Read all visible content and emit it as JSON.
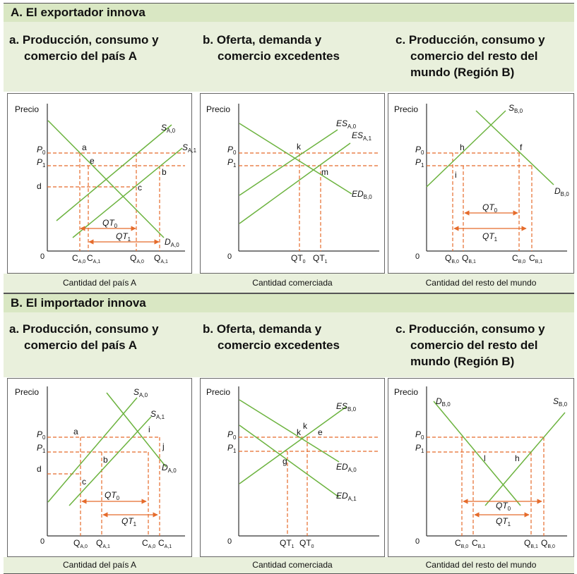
{
  "colors": {
    "curve": "#6cb33f",
    "dash": "#e56b2b",
    "axis": "#333333",
    "header_bg": "#d9e7c3",
    "row_bg": "#e9f0dc"
  },
  "sections": [
    {
      "title": "A. El exportador innova",
      "panels": [
        {
          "title_l1": "a. Producción, consumo y",
          "title_l2": "comercio del país A",
          "title_l3": "",
          "caption": "Cantidad del país A"
        },
        {
          "title_l1": "b. Oferta, demanda y",
          "title_l2": "comercio excedentes",
          "title_l3": "",
          "caption": "Cantidad comerciada"
        },
        {
          "title_l1": "c. Producción, consumo y",
          "title_l2": "comercio del resto del",
          "title_l3": "mundo (Región B)",
          "caption": "Cantidad del resto del mundo"
        }
      ]
    },
    {
      "title": "B. El importador innova",
      "panels": [
        {
          "title_l1": "a. Producción, consumo y",
          "title_l2": "comercio del país A",
          "title_l3": "",
          "caption": "Cantidad del país A"
        },
        {
          "title_l1": "b. Oferta, demanda y",
          "title_l2": "comercio excedentes",
          "title_l3": "",
          "caption": "Cantidad comerciada"
        },
        {
          "title_l1": "c. Producción, consumo y",
          "title_l2": "comercio del resto del",
          "title_l3": "mundo (Región B)",
          "caption": "Cantidad del resto del mundo"
        }
      ]
    }
  ],
  "diagrams": {
    "y_axis_label": "Precio",
    "origin": "0",
    "A1": {
      "curves": [
        "S",
        "A,0",
        "S",
        "A,1",
        "D",
        "A,0"
      ],
      "prices": [
        "P",
        "0",
        "P",
        "1"
      ],
      "points": [
        "a",
        "e",
        "b",
        "c",
        "d"
      ],
      "ticks": [
        "C",
        "A,0",
        "C",
        "A,1",
        "Q",
        "A,0",
        "Q",
        "A,1"
      ],
      "arrows": [
        "QT",
        "0",
        "QT",
        "1"
      ]
    },
    "A2": {
      "curves": [
        "ES",
        "A,0",
        "ES",
        "A,1",
        "ED",
        "B,0"
      ],
      "prices": [
        "P",
        "0",
        "P",
        "1"
      ],
      "points": [
        "k",
        "m"
      ],
      "ticks": [
        "QT",
        "0",
        "QT",
        "1"
      ]
    },
    "A3": {
      "curves": [
        "S",
        "B,0",
        "D",
        "B,0"
      ],
      "prices": [
        "P",
        "0",
        "P",
        "1"
      ],
      "points": [
        "h",
        "f",
        "i"
      ],
      "ticks": [
        "Q",
        "B,0",
        "Q",
        "B,1",
        "C",
        "B,0",
        "C",
        "B,1"
      ],
      "arrows": [
        "QT",
        "0",
        "QT",
        "1"
      ]
    },
    "B1": {
      "curves": [
        "S",
        "A,0",
        "S",
        "A,1",
        "D",
        "A,0"
      ],
      "prices": [
        "P",
        "0",
        "P",
        "1"
      ],
      "points": [
        "a",
        "i",
        "j",
        "b",
        "d",
        "c"
      ],
      "ticks": [
        "Q",
        "A,0",
        "Q",
        "A,1",
        "C",
        "A,0",
        "C",
        "A,1"
      ],
      "arrows": [
        "QT",
        "0",
        "QT",
        "1"
      ]
    },
    "B2": {
      "curves": [
        "ES",
        "B,0",
        "ED",
        "A,0",
        "ED",
        "A,1"
      ],
      "prices": [
        "P",
        "0",
        "P",
        "1"
      ],
      "points": [
        "k",
        "k",
        "e",
        "g"
      ],
      "ticks": [
        "QT",
        "1",
        "QT",
        "0"
      ]
    },
    "B3": {
      "curves": [
        "D",
        "B,0",
        "S",
        "B,0"
      ],
      "prices": [
        "P",
        "0",
        "P",
        "1"
      ],
      "points": [
        "l",
        "h"
      ],
      "ticks": [
        "C",
        "B,0",
        "C",
        "B,1",
        "Q",
        "B,1",
        "Q",
        "B,0"
      ],
      "arrows": [
        "QT",
        "0",
        "QT",
        "1"
      ]
    }
  }
}
